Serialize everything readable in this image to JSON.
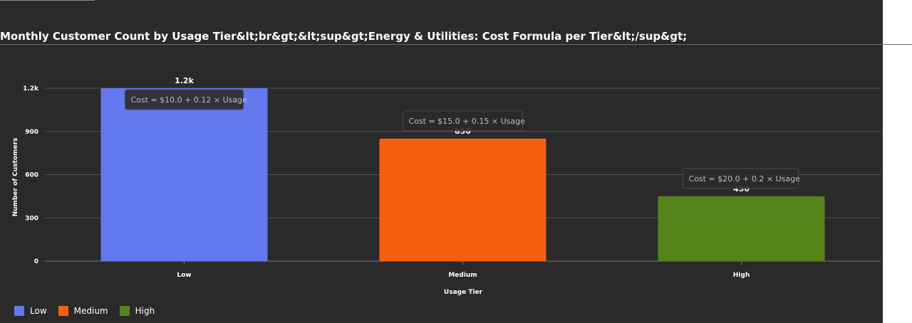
{
  "chart_data": {
    "type": "bar",
    "title": "Monthly Customer Count by Usage Tier&lt;br&gt;&lt;sup&gt;Energy & Utilities: Cost Formula per Tier&lt;/sup&gt;",
    "xlabel": "Usage Tier",
    "ylabel": "Number of Customers",
    "categories": [
      "Low",
      "Medium",
      "High"
    ],
    "values": [
      1200,
      850,
      450
    ],
    "data_labels": [
      "1.2k",
      "850",
      "450"
    ],
    "colors": [
      "#6478f0",
      "#f5600f",
      "#55831c"
    ],
    "ylim": [
      0,
      1200
    ],
    "yticks": [
      0,
      300,
      600,
      900,
      1200
    ],
    "ytick_labels": [
      "0",
      "300",
      "600",
      "900",
      "1.2k"
    ],
    "grid": true,
    "annotations": [
      "Cost = $10.0 + 0.12 × Usage",
      "Cost = $15.0 + 0.15 × Usage",
      "Cost = $20.0 + 0.2 × Usage"
    ],
    "legend": {
      "position": "bottom-left",
      "entries": [
        {
          "label": "Low",
          "color": "#6478f0"
        },
        {
          "label": "Medium",
          "color": "#f5600f"
        },
        {
          "label": "High",
          "color": "#55831c"
        }
      ]
    }
  }
}
